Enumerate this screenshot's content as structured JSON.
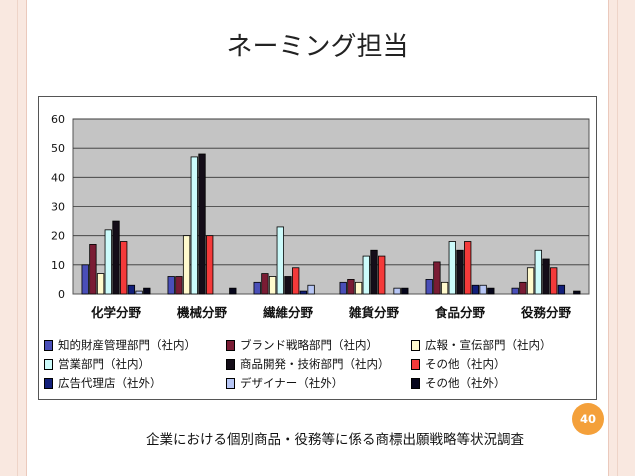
{
  "slide": {
    "title": "ネーミング担当",
    "footer": "企業における個別商品・役務等に係る商標出願戦略等状況調査",
    "page_number": "40"
  },
  "chart_data": {
    "type": "bar",
    "title": "",
    "xlabel": "",
    "ylabel": "",
    "ylim": [
      0,
      60
    ],
    "yticks": [
      0,
      10,
      20,
      30,
      40,
      50,
      60
    ],
    "grid": true,
    "legend_position": "bottom",
    "categories": [
      "化学分野",
      "機械分野",
      "繊維分野",
      "雑貨分野",
      "食品分野",
      "役務分野"
    ],
    "series": [
      {
        "name": "知的財産管理部門（社内）",
        "color": "#4a4fb8",
        "values": [
          10,
          6,
          4,
          4,
          5,
          2
        ]
      },
      {
        "name": "ブランド戦略部門（社内）",
        "color": "#7a1c34",
        "values": [
          17,
          6,
          7,
          5,
          11,
          4
        ]
      },
      {
        "name": "広報・宣伝部門（社内）",
        "color": "#fffacd",
        "values": [
          7,
          20,
          6,
          4,
          4,
          9
        ]
      },
      {
        "name": "営業部門（社内）",
        "color": "#ccfbfb",
        "values": [
          22,
          47,
          23,
          13,
          18,
          15
        ]
      },
      {
        "name": "商品開発・技術部門（社内）",
        "color": "#140d18",
        "values": [
          25,
          48,
          6,
          15,
          15,
          12
        ]
      },
      {
        "name": "その他（社内）",
        "color": "#f43a3a",
        "values": [
          18,
          20,
          9,
          13,
          18,
          9
        ]
      },
      {
        "name": "広告代理店（社外）",
        "color": "#121f7a",
        "values": [
          3,
          0,
          1,
          0,
          3,
          3
        ]
      },
      {
        "name": "デザイナー（社外）",
        "color": "#b7c6f5",
        "values": [
          1,
          0,
          3,
          2,
          3,
          0
        ]
      },
      {
        "name": "その他（社外）",
        "color": "#06061c",
        "values": [
          2,
          2,
          0,
          2,
          2,
          1
        ]
      }
    ]
  }
}
